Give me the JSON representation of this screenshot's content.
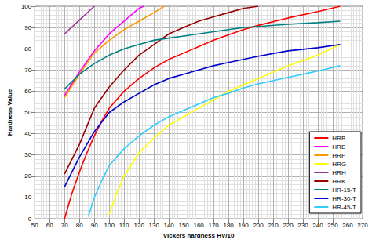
{
  "chart_data": {
    "type": "line",
    "xlabel": "Vickers hardness HV/10",
    "ylabel": "Hardness Value",
    "xlim": [
      50,
      270
    ],
    "xticks": [
      50,
      60,
      70,
      80,
      90,
      100,
      110,
      120,
      130,
      140,
      150,
      160,
      170,
      180,
      190,
      200,
      210,
      220,
      230,
      240,
      250,
      260,
      270
    ],
    "ylim": [
      0,
      100
    ],
    "yticks": [
      0,
      10,
      20,
      30,
      40,
      50,
      60,
      70,
      80,
      90,
      100
    ],
    "grid": true,
    "legend": "lower right",
    "series": [
      {
        "name": "HRB",
        "color": "#ff0000",
        "x": [
          70,
          75,
          80,
          85,
          90,
          95,
          100,
          110,
          120,
          130,
          140,
          150,
          160,
          170,
          180,
          190,
          200,
          220,
          240,
          255
        ],
        "values": [
          0,
          12,
          22,
          31,
          39,
          46,
          52,
          60,
          66,
          71,
          75,
          78,
          81,
          84,
          86.5,
          89,
          91,
          94.5,
          97.5,
          100
        ]
      },
      {
        "name": "HRE",
        "color": "#ff00ff",
        "x": [
          70,
          80,
          90,
          100,
          110,
          120,
          123
        ],
        "values": [
          58,
          69,
          79,
          87,
          93,
          99,
          100
        ]
      },
      {
        "name": "HRF",
        "color": "#ff9900",
        "x": [
          70,
          80,
          90,
          100,
          110,
          120,
          130,
          137
        ],
        "values": [
          57,
          68,
          78,
          84,
          89,
          93,
          97,
          100
        ]
      },
      {
        "name": "HRG",
        "color": "#ffff00",
        "x": [
          100,
          105,
          110,
          120,
          130,
          140,
          150,
          160,
          170,
          180,
          190,
          200,
          220,
          240,
          255
        ],
        "values": [
          2,
          12,
          20,
          31,
          38,
          44,
          48,
          52,
          56,
          60,
          63,
          66,
          72,
          77,
          82
        ]
      },
      {
        "name": "HRH",
        "color": "#993399",
        "x": [
          70,
          80,
          90
        ],
        "values": [
          87,
          93.5,
          100
        ]
      },
      {
        "name": "HRK",
        "color": "#990000",
        "x": [
          70,
          80,
          90,
          100,
          110,
          120,
          130,
          140,
          150,
          160,
          170,
          180,
          190,
          200
        ],
        "values": [
          21,
          35,
          52,
          62,
          70,
          77,
          82,
          87,
          90,
          93,
          95,
          97,
          99,
          100
        ]
      },
      {
        "name": "HR-15-T",
        "color": "#008080",
        "x": [
          70,
          80,
          90,
          100,
          110,
          120,
          130,
          140,
          150,
          160,
          170,
          180,
          190,
          200,
          220,
          240,
          255
        ],
        "values": [
          61,
          68,
          73,
          77,
          80,
          82,
          84,
          85,
          86,
          87,
          88,
          89,
          90,
          90.5,
          91.5,
          92.3,
          93
        ]
      },
      {
        "name": "HR-30-T",
        "color": "#0000cc",
        "x": [
          70,
          80,
          90,
          100,
          110,
          120,
          130,
          140,
          150,
          160,
          170,
          180,
          190,
          200,
          220,
          240,
          255
        ],
        "values": [
          15,
          29,
          41,
          50,
          55,
          59,
          63,
          66,
          68,
          70,
          72,
          73.5,
          75,
          76.5,
          79,
          80.5,
          82
        ]
      },
      {
        "name": "HR-45-T",
        "color": "#33ccff",
        "x": [
          86,
          90,
          95,
          100,
          110,
          120,
          130,
          140,
          150,
          160,
          170,
          180,
          190,
          200,
          220,
          240,
          255
        ],
        "values": [
          1,
          10,
          18,
          25,
          33,
          39,
          44,
          48,
          51,
          54,
          57,
          59,
          61.5,
          63.5,
          66.5,
          69.5,
          72
        ]
      }
    ]
  }
}
